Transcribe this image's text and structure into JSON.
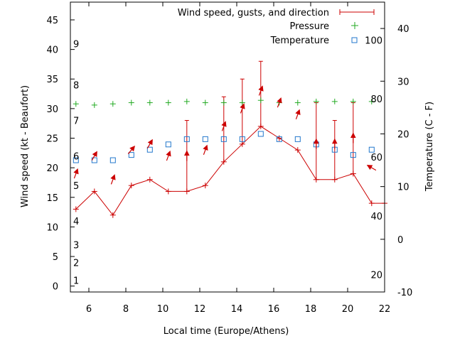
{
  "chart_data": {
    "type": "line",
    "xlabel": "Local time (Europe/Athens)",
    "ylabel_left": "Wind speed (kt - Beaufort)",
    "ylabel_right": "Temperature (C - F)",
    "xlim": [
      5,
      22
    ],
    "ylim_left": [
      -1,
      48
    ],
    "ylim_right": [
      -10,
      45
    ],
    "x_ticks": [
      6,
      8,
      10,
      12,
      14,
      16,
      18,
      20,
      22
    ],
    "y_ticks_left": [
      0,
      5,
      10,
      15,
      20,
      25,
      30,
      35,
      40,
      45
    ],
    "y_ticks_right": [
      -10,
      0,
      10,
      20,
      30,
      40
    ],
    "beaufort_labels": [
      {
        "label": "1",
        "kt": 1
      },
      {
        "label": "2",
        "kt": 4
      },
      {
        "label": "3",
        "kt": 7
      },
      {
        "label": "4",
        "kt": 11
      },
      {
        "label": "5",
        "kt": 17
      },
      {
        "label": "6",
        "kt": 22
      },
      {
        "label": "7",
        "kt": 28
      },
      {
        "label": "8",
        "kt": 34
      },
      {
        "label": "9",
        "kt": 41
      }
    ],
    "fahrenheit_labels": [
      {
        "label": "20",
        "c": -6.7
      },
      {
        "label": "40",
        "c": 4.4
      },
      {
        "label": "60",
        "c": 15.6
      },
      {
        "label": "80",
        "c": 26.7
      },
      {
        "label": "100",
        "c": 37.8
      }
    ],
    "legend": {
      "wind": "Wind speed, gusts, and direction",
      "pressure": "Pressure",
      "temperature": "Temperature"
    },
    "colors": {
      "wind": "#cc0000",
      "pressure": "#22aa22",
      "temperature": "#2277cc"
    },
    "series": [
      {
        "name": "Wind speed, gusts, and direction",
        "x": [
          5.3,
          6.3,
          7.3,
          8.3,
          9.3,
          10.3,
          11.3,
          12.3,
          13.3,
          14.3,
          15.3,
          16.3,
          17.3,
          18.3,
          19.3,
          20.3,
          21.3,
          22
        ],
        "values": [
          13,
          16,
          12,
          17,
          18,
          16,
          16,
          17,
          21,
          24,
          27,
          25,
          23,
          18,
          18,
          19,
          14,
          14
        ],
        "gusts": [
          null,
          null,
          null,
          null,
          null,
          null,
          28,
          null,
          32,
          35,
          38,
          null,
          null,
          31,
          28,
          31,
          null,
          null
        ]
      },
      {
        "name": "Pressure",
        "x": [
          5.3,
          6.3,
          7.3,
          8.3,
          9.3,
          10.3,
          11.3,
          12.3,
          13.3,
          14.3,
          15.3,
          16.3,
          17.3,
          18.3,
          19.3,
          20.3,
          21.3
        ],
        "values": [
          30.8,
          30.6,
          30.8,
          31.0,
          31.0,
          31.0,
          31.2,
          31.0,
          31.0,
          31.0,
          31.4,
          31.0,
          31.0,
          31.2,
          31.2,
          31.2,
          31.2
        ]
      },
      {
        "name": "Temperature",
        "x": [
          5.3,
          6.3,
          7.3,
          8.3,
          9.3,
          10.3,
          11.3,
          12.3,
          13.3,
          14.3,
          15.3,
          16.3,
          17.3,
          18.3,
          19.3,
          20.3,
          21.3
        ],
        "values": [
          15.0,
          15.0,
          15.0,
          16.0,
          17.0,
          18.0,
          19.0,
          19.0,
          19.0,
          19.0,
          20.0,
          19.0,
          19.0,
          18.0,
          17.0,
          16.0,
          17.0
        ]
      }
    ],
    "direction_arrows": {
      "x": [
        5.3,
        6.3,
        7.3,
        8.3,
        9.3,
        10.3,
        11.3,
        12.3,
        13.3,
        14.3,
        15.3,
        16.3,
        17.3,
        18.3,
        19.3,
        20.3,
        21.3
      ],
      "wind_kt": [
        13,
        16,
        12,
        17,
        18,
        16,
        16,
        17,
        21,
        24,
        27,
        25,
        23,
        18,
        18,
        19,
        14
      ],
      "from_deg": [
        20,
        30,
        20,
        40,
        30,
        20,
        0,
        20,
        20,
        20,
        20,
        20,
        20,
        0,
        0,
        0,
        300
      ]
    }
  }
}
